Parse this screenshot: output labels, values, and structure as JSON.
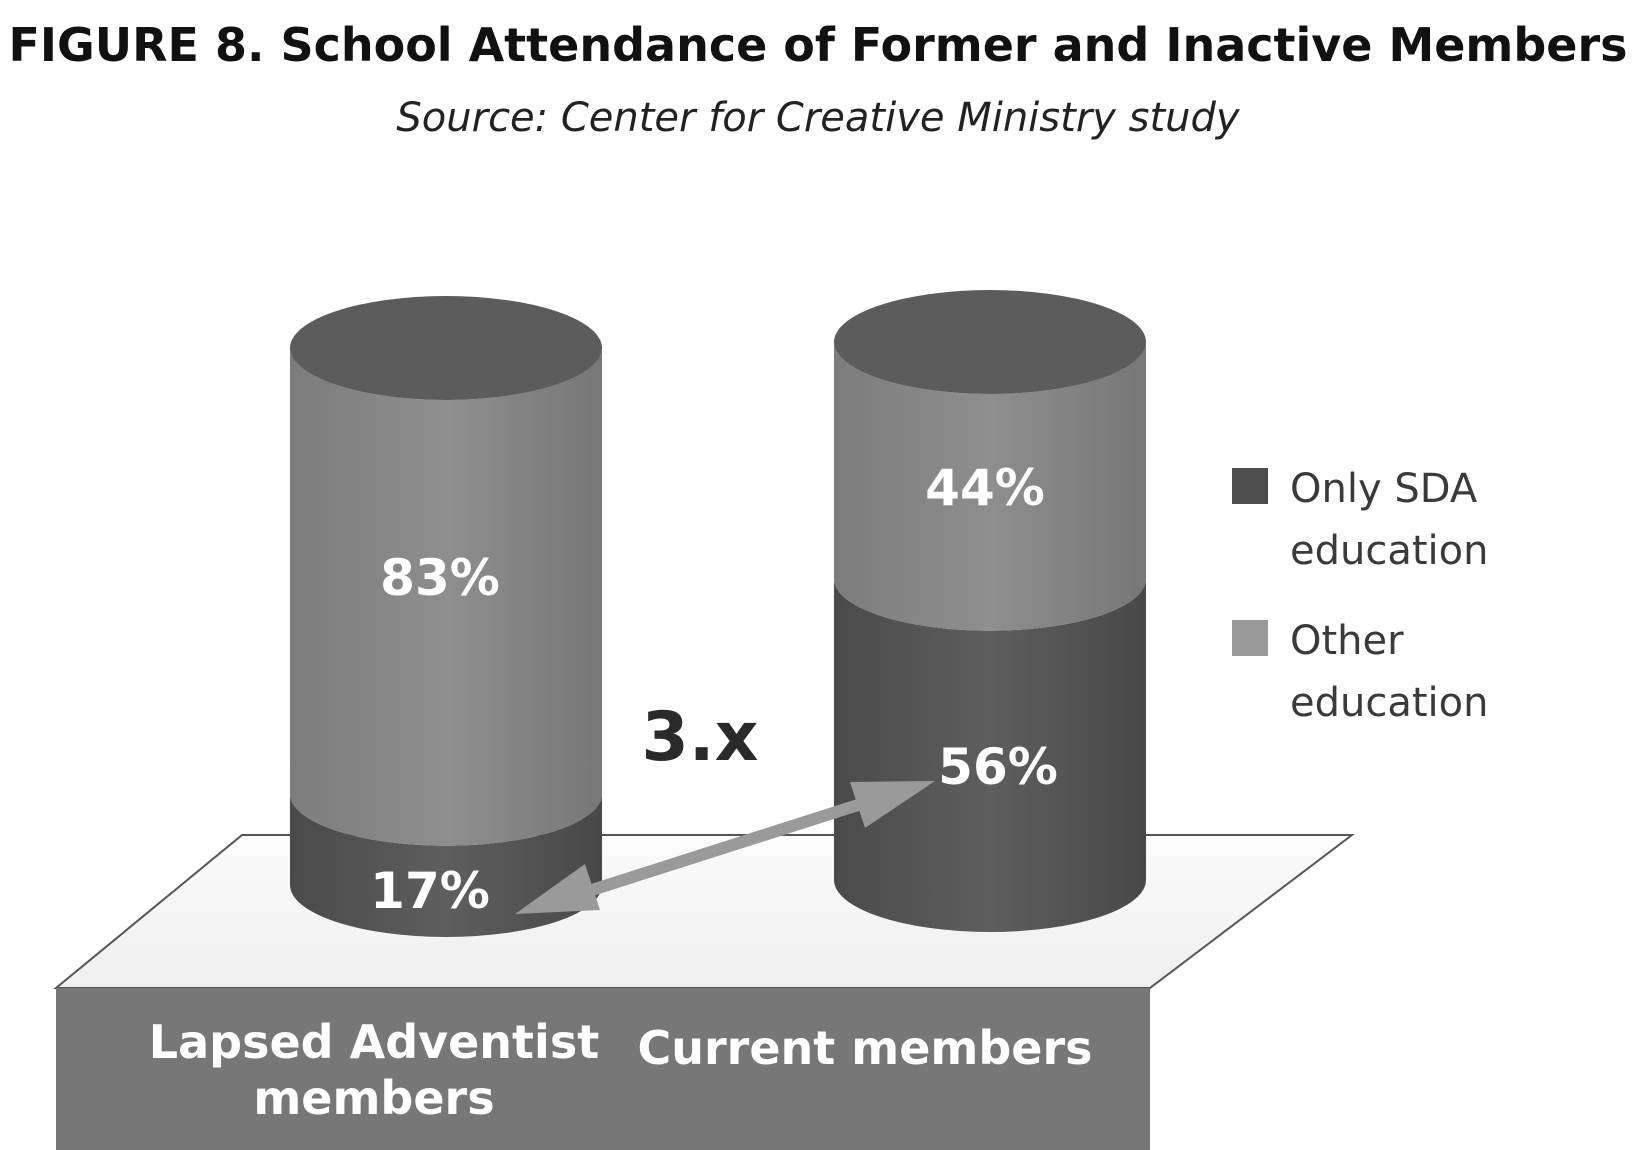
{
  "chart_data": {
    "type": "bar",
    "stacked": true,
    "title": "FIGURE 8. School Attendance of Former and Inactive Members",
    "subtitle": "Source: Center for Creative Ministry study",
    "categories": [
      "Lapsed Adventist members",
      "Current members"
    ],
    "category_lines": [
      [
        "Lapsed Adventist",
        "members"
      ],
      [
        "Current members"
      ]
    ],
    "series": [
      {
        "name": "Only SDA education",
        "legend_lines": [
          "Only SDA",
          "education"
        ],
        "values": [
          17,
          56
        ],
        "labels": [
          "17%",
          "56%"
        ],
        "color": "#5a5a5a"
      },
      {
        "name": "Other education",
        "legend_lines": [
          "Other",
          "education"
        ],
        "values": [
          83,
          44
        ],
        "labels": [
          "83%",
          "44%"
        ],
        "color": "#8a8a8a"
      }
    ],
    "annotation": "3.x",
    "ylim": [
      0,
      100
    ],
    "legend_position": "right",
    "grid": false
  }
}
